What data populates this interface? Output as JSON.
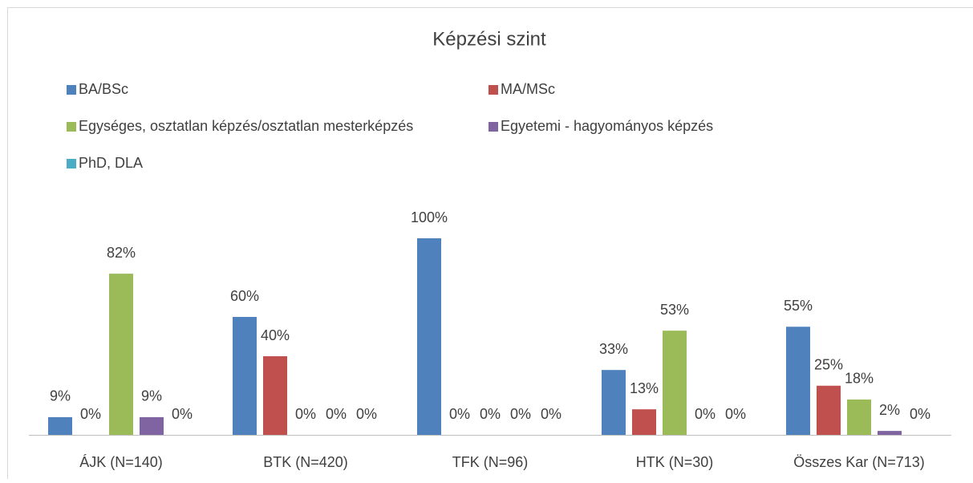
{
  "chart_data": {
    "type": "bar",
    "title": "Képzési szint",
    "categories": [
      "ÁJK (N=140)",
      "BTK (N=420)",
      "TFK (N=96)",
      "HTK (N=30)",
      "Összes Kar (N=713)"
    ],
    "series": [
      {
        "name": "BA/BSc",
        "color": "#4f81bd",
        "values": [
          9,
          60,
          100,
          33,
          55
        ],
        "value_labels": [
          "9%",
          "60%",
          "100%",
          "33%",
          "55%"
        ]
      },
      {
        "name": "MA/MSc",
        "color": "#c0504d",
        "values": [
          0,
          40,
          0,
          13,
          25
        ],
        "value_labels": [
          "0%",
          "40%",
          "0%",
          "13%",
          "25%"
        ]
      },
      {
        "name": "Egységes, osztatlan képzés/osztatlan mesterképzés",
        "color": "#9bbb59",
        "values": [
          82,
          0,
          0,
          53,
          18
        ],
        "value_labels": [
          "82%",
          "0%",
          "0%",
          "53%",
          "18%"
        ]
      },
      {
        "name": "Egyetemi - hagyományos képzés",
        "color": "#8064a2",
        "values": [
          9,
          0,
          0,
          0,
          2
        ],
        "value_labels": [
          "9%",
          "0%",
          "0%",
          "0%",
          "2%"
        ]
      },
      {
        "name": "PhD, DLA",
        "color": "#4bacc6",
        "values": [
          0,
          0,
          0,
          0,
          0
        ],
        "value_labels": [
          "0%",
          "0%",
          "0%",
          "0%",
          "0%"
        ]
      }
    ],
    "legend": "top"
  }
}
